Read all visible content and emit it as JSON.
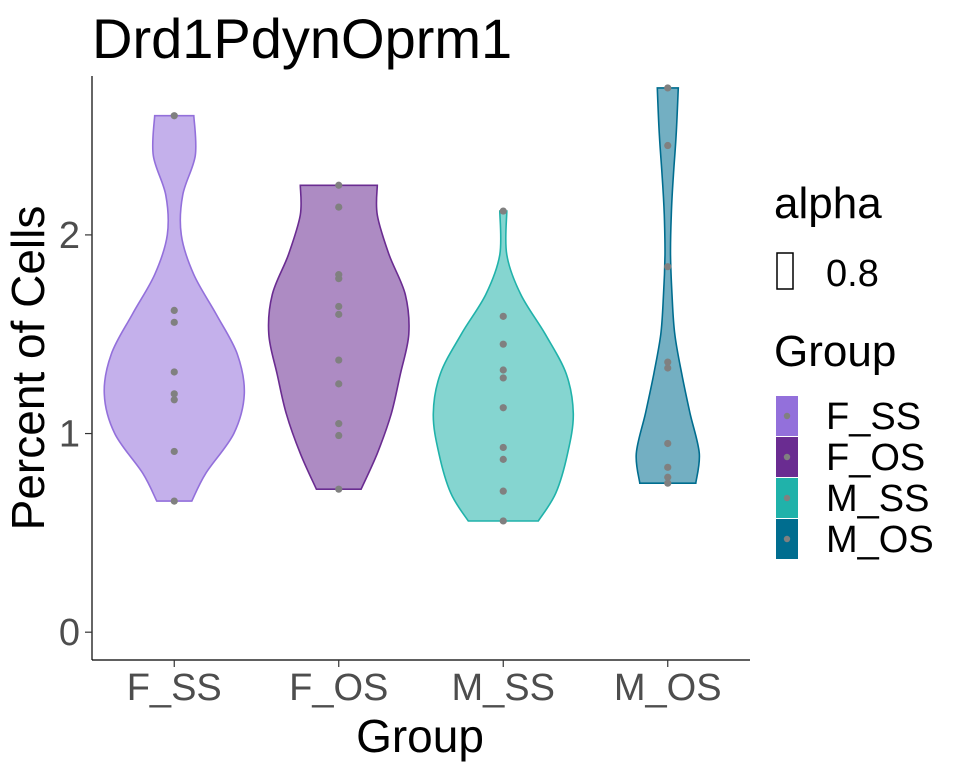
{
  "chart_data": {
    "type": "violin",
    "title": "Drd1PdynOprm1",
    "xlabel": "Group",
    "ylabel": "Percent of Cells",
    "categories": [
      "F_SS",
      "F_OS",
      "M_SS",
      "M_OS"
    ],
    "yticks": [
      "0",
      "1",
      "2"
    ],
    "ylim": [
      -0.14,
      2.8
    ],
    "grid": false,
    "legend_placement": "right",
    "series": [
      {
        "name": "F_SS",
        "color": "#9370DB",
        "points": [
          2.6,
          1.62,
          1.56,
          1.31,
          1.2,
          1.17,
          0.91,
          0.66
        ],
        "profile": [
          [
            0.66,
            0.25
          ],
          [
            0.8,
            0.45
          ],
          [
            1.0,
            0.85
          ],
          [
            1.2,
            1.0
          ],
          [
            1.4,
            0.9
          ],
          [
            1.6,
            0.6
          ],
          [
            1.8,
            0.28
          ],
          [
            2.0,
            0.1
          ],
          [
            2.2,
            0.12
          ],
          [
            2.4,
            0.3
          ],
          [
            2.6,
            0.28
          ]
        ]
      },
      {
        "name": "F_OS",
        "color": "#6A2C91",
        "points": [
          2.25,
          2.14,
          1.8,
          1.78,
          1.64,
          1.6,
          1.37,
          1.25,
          1.05,
          0.99,
          0.72
        ],
        "profile": [
          [
            0.72,
            0.32
          ],
          [
            0.9,
            0.55
          ],
          [
            1.1,
            0.75
          ],
          [
            1.3,
            0.88
          ],
          [
            1.5,
            1.0
          ],
          [
            1.7,
            0.95
          ],
          [
            1.9,
            0.72
          ],
          [
            2.1,
            0.55
          ],
          [
            2.25,
            0.55
          ]
        ]
      },
      {
        "name": "M_SS",
        "color": "#20B2AA",
        "points": [
          2.12,
          1.59,
          1.45,
          1.32,
          1.28,
          1.13,
          0.93,
          0.87,
          0.71,
          0.56
        ],
        "profile": [
          [
            0.56,
            0.5
          ],
          [
            0.7,
            0.75
          ],
          [
            0.9,
            0.92
          ],
          [
            1.1,
            1.0
          ],
          [
            1.3,
            0.9
          ],
          [
            1.5,
            0.6
          ],
          [
            1.7,
            0.25
          ],
          [
            1.9,
            0.05
          ],
          [
            2.12,
            0.05
          ]
        ]
      },
      {
        "name": "M_OS",
        "color": "#006D8F",
        "points": [
          2.74,
          2.45,
          1.84,
          1.36,
          1.33,
          0.95,
          0.83,
          0.78,
          0.75
        ],
        "profile": [
          [
            0.75,
            0.4
          ],
          [
            0.9,
            0.45
          ],
          [
            1.1,
            0.32
          ],
          [
            1.3,
            0.2
          ],
          [
            1.5,
            0.1
          ],
          [
            1.7,
            0.06
          ],
          [
            1.9,
            0.04
          ],
          [
            2.1,
            0.05
          ],
          [
            2.3,
            0.08
          ],
          [
            2.5,
            0.12
          ],
          [
            2.74,
            0.15
          ]
        ]
      }
    ]
  },
  "legend": {
    "alpha_title": "alpha",
    "alpha_label": "0.8",
    "group_title": "Group",
    "items": [
      "F_SS",
      "F_OS",
      "M_SS",
      "M_OS"
    ]
  },
  "colors": {
    "point": "#808080",
    "axis": "#000000",
    "tick_text": "#4d4d4d"
  }
}
